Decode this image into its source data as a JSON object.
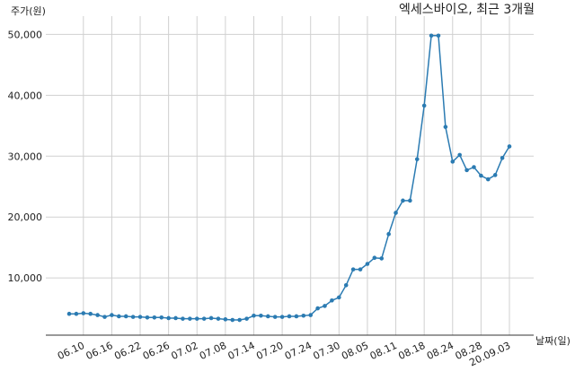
{
  "chart_data": {
    "type": "line",
    "title": "엑세스바이오, 최근 3개월",
    "y_label": "주가(원)",
    "x_label": "날짜(일)",
    "categories": [
      null,
      null,
      "06.10",
      null,
      null,
      null,
      "06.16",
      null,
      null,
      null,
      "06.22",
      null,
      null,
      null,
      "06.26",
      null,
      null,
      null,
      "07.02",
      null,
      null,
      null,
      "07.08",
      null,
      null,
      null,
      "07.14",
      null,
      null,
      null,
      "07.20",
      null,
      null,
      null,
      "07.24",
      null,
      null,
      null,
      "07.30",
      null,
      null,
      null,
      "08.05",
      null,
      null,
      null,
      "08.11",
      null,
      null,
      null,
      "08.18",
      null,
      null,
      null,
      "08.24",
      null,
      null,
      null,
      "08.28",
      null,
      null,
      null,
      "20.09.03"
    ],
    "series": [
      {
        "name": "엑세스바이오",
        "color": "#2b7bb2",
        "values": [
          4100,
          4100,
          4200,
          4100,
          3900,
          3600,
          3900,
          3700,
          3700,
          3600,
          3600,
          3500,
          3500,
          3500,
          3400,
          3400,
          3300,
          3300,
          3300,
          3300,
          3400,
          3300,
          3200,
          3100,
          3100,
          3300,
          3800,
          3800,
          3700,
          3600,
          3600,
          3700,
          3700,
          3800,
          3900,
          5000,
          5400,
          6300,
          6800,
          8800,
          11400,
          11400,
          12300,
          13300,
          13200,
          17200,
          20700,
          22700,
          22700,
          29500,
          38300,
          49800,
          49800,
          34800,
          29100,
          30200,
          27700,
          28200,
          26800,
          26200,
          26900,
          29700,
          31600
        ]
      }
    ],
    "ylim": [
      600,
      53000
    ],
    "yticks": [
      {
        "value": 10000,
        "label": "10,000"
      },
      {
        "value": 20000,
        "label": "20,000"
      },
      {
        "value": 30000,
        "label": "30,000"
      },
      {
        "value": 40000,
        "label": "40,000"
      },
      {
        "value": 50000,
        "label": "50,000"
      }
    ],
    "grid": true
  }
}
